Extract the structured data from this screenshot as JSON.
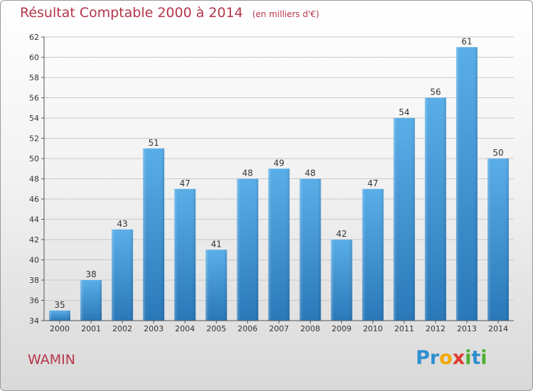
{
  "chart_data": {
    "type": "bar",
    "title": "Résultat Comptable 2000 à 2014",
    "unit_note": "(en milliers d'€)",
    "categories": [
      "2000",
      "2001",
      "2002",
      "2003",
      "2004",
      "2005",
      "2006",
      "2007",
      "2008",
      "2009",
      "2010",
      "2011",
      "2012",
      "2013",
      "2014"
    ],
    "values": [
      35,
      38,
      43,
      51,
      47,
      41,
      48,
      49,
      48,
      42,
      47,
      54,
      56,
      61,
      50
    ],
    "ylim": [
      34,
      62
    ],
    "yticks": [
      34,
      36,
      38,
      40,
      42,
      44,
      46,
      48,
      50,
      52,
      54,
      56,
      58,
      60,
      62
    ],
    "grid": true,
    "bar_color_top": "#5aaee8",
    "bar_color_bottom": "#2a78b8"
  },
  "commune": "WAMIN",
  "logo": {
    "letters": [
      "P",
      "r",
      "o",
      "x",
      "i",
      "t",
      "i"
    ],
    "colors": [
      "#2f8fd0",
      "#2f8fd0",
      "#f2a900",
      "#e03a2f",
      "#4caf2f",
      "#2f8fd0",
      "#4caf2f"
    ]
  },
  "colors": {
    "title": "#b5364a"
  }
}
